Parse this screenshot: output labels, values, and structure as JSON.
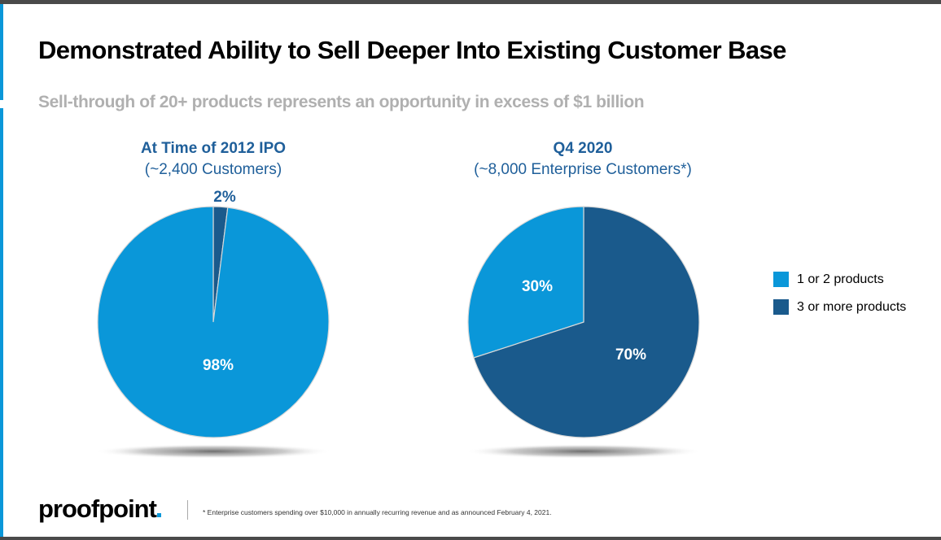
{
  "slide": {
    "title": "Demonstrated Ability to Sell Deeper Into Existing Customer Base",
    "subtitle": "Sell-through of 20+ products represents an opportunity in excess of  $1 billion",
    "footnote": "* Enterprise customers spending over $10,000 in annually recurring revenue and as announced February 4, 2021.",
    "logo_text": "proofpoint"
  },
  "colors": {
    "light_blue": "#0a97d9",
    "dark_blue": "#1a5a8c",
    "heading_blue": "#1f5f9a"
  },
  "legend": [
    {
      "label": "1 or 2 products",
      "color": "#0a97d9"
    },
    {
      "label": "3 or more products",
      "color": "#1a5a8c"
    }
  ],
  "chart_data": [
    {
      "type": "pie",
      "title": "At Time of 2012 IPO",
      "subtitle": "(~2,400 Customers)",
      "slices": [
        {
          "name": "1 or 2 products",
          "value": 98,
          "label": "98%",
          "color": "#0a97d9"
        },
        {
          "name": "3 or more products",
          "value": 2,
          "label": "2%",
          "color": "#1a5a8c"
        }
      ]
    },
    {
      "type": "pie",
      "title": "Q4 2020",
      "subtitle": "(~8,000 Enterprise Customers*)",
      "slices": [
        {
          "name": "1 or 2 products",
          "value": 30,
          "label": "30%",
          "color": "#0a97d9"
        },
        {
          "name": "3 or more products",
          "value": 70,
          "label": "70%",
          "color": "#1a5a8c"
        }
      ]
    }
  ]
}
